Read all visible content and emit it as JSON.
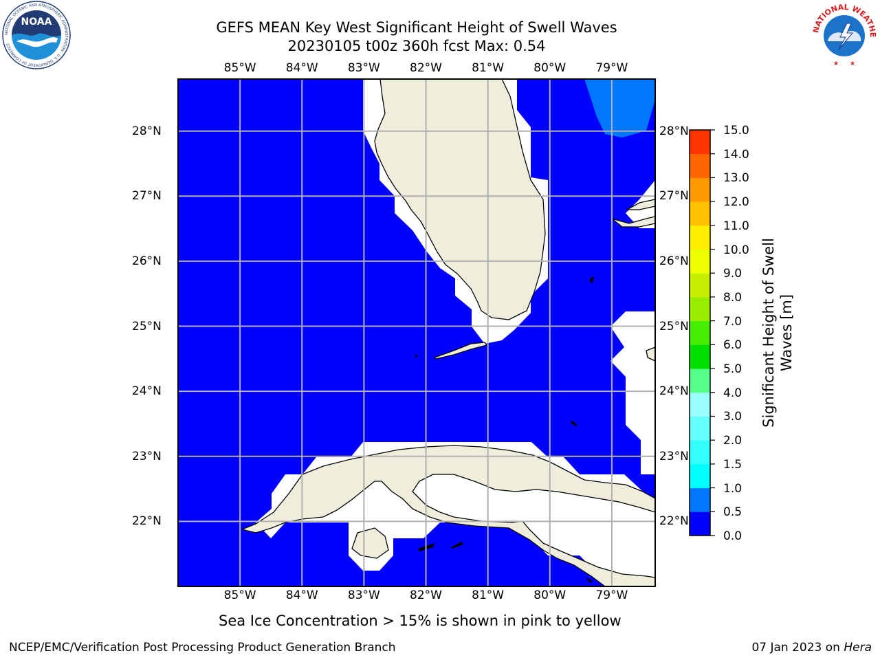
{
  "title": {
    "line1": "GEFS MEAN Key West Significant Height of Swell Waves",
    "line2": "20230105 t00z 360h fcst   Max: 0.54"
  },
  "map": {
    "lon_labels": [
      "85°W",
      "84°W",
      "83°W",
      "82°W",
      "81°W",
      "80°W",
      "79°W"
    ],
    "lat_labels": [
      "28°N",
      "27°N",
      "26°N",
      "25°N",
      "24°N",
      "23°N",
      "22°N"
    ],
    "extent": {
      "lon_min": -86.0,
      "lon_max": -78.3,
      "lat_min": 21.0,
      "lat_max": 28.8
    },
    "ocean_color": "#0000ff",
    "land_color": "#efeedc",
    "mask_color": "#ffffff",
    "region_color_0_5_to_1_0": "#0077ff"
  },
  "colorbar": {
    "levels": [
      0.0,
      0.5,
      1.0,
      1.5,
      2.0,
      3.0,
      4.0,
      5.0,
      6.0,
      7.0,
      8.0,
      9.0,
      10.0,
      11.0,
      12.0,
      13.0,
      14.0,
      15.0
    ],
    "tick_labels": [
      "0.0",
      "0.5",
      "1.0",
      "1.5",
      "2.0",
      "3.0",
      "4.0",
      "5.0",
      "6.0",
      "7.0",
      "8.0",
      "9.0",
      "10.0",
      "11.0",
      "12.0",
      "13.0",
      "14.0",
      "15.0"
    ],
    "colors": [
      "#0000ff",
      "#0077ff",
      "#00ffff",
      "#33ffff",
      "#66ffff",
      "#99ffff",
      "#55ff88",
      "#00e000",
      "#44ee00",
      "#99ee00",
      "#c8ee00",
      "#eeff00",
      "#ffee00",
      "#ffc000",
      "#ff9900",
      "#ff6600",
      "#ff3300",
      "#ff0000"
    ],
    "label_line1": "Significant Height of Swell",
    "label_line2": "Waves [m]"
  },
  "note": "Sea Ice Concentration > 15% is shown in pink to yellow",
  "footer": {
    "left": "NCEP/EMC/Verification Post Processing Product Generation Branch",
    "date": "07 Jan 2023 on ",
    "host": "Hera"
  },
  "logos": {
    "noaa": {
      "icon": "noaa-logo",
      "ring_text": "NATIONAL OCEANIC AND ATMOSPHERIC ADMINISTRATION · U.S. DEPARTMENT OF COMMERCE",
      "name": "NOAA"
    },
    "nws": {
      "icon": "nws-logo",
      "ring_text": "NATIONAL WEATHER SERVICE"
    }
  }
}
